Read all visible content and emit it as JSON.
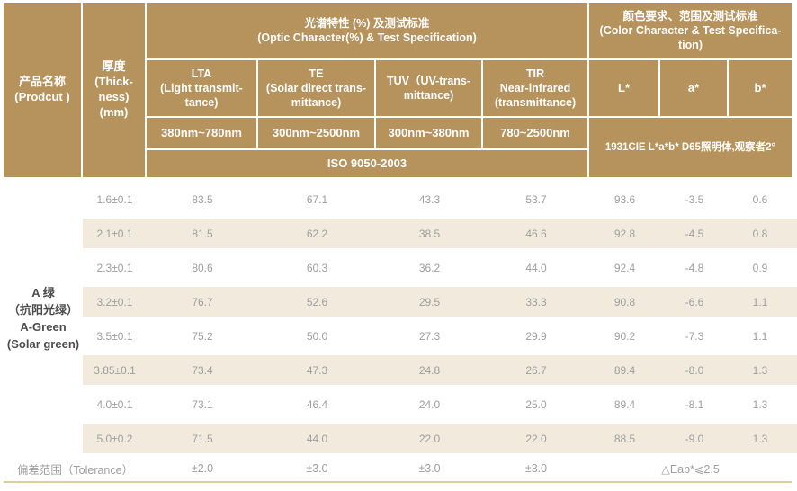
{
  "theme": {
    "header_bg": "#b6925c",
    "header_text": "#ffffff",
    "stripe_bg": "#f2ebdd",
    "value_text": "#9e9e9e",
    "product_text": "#4d4d4d",
    "bottom_line": "#ddcfa2"
  },
  "header": {
    "product_label": "产品名称\n(Prodcut )",
    "thickness_label": "厚度\n(Thick-\nness)\n(mm)",
    "optic_section_title": "光谱特性 (%) 及测试标准\n(Optic Character(%) & Test Specification)",
    "color_section_title": "颜色要求、范围及测试标准\n(Color Character & Test Specifica-\ntion)",
    "lta_label": "LTA\n(Light transmit-\ntance)",
    "te_label": "TE\n(Solar direct trans-\nmittance)",
    "tuv_label": "TUV（UV-trans-\nmittance)",
    "tir_label": "TIR\nNear-infrared\n(transmittance)",
    "lta_range": "380nm~780nm",
    "te_range": "300nm~2500nm",
    "tuv_range": "300nm~380nm",
    "tir_range": "780~2500nm",
    "optic_standard": "ISO 9050-2003",
    "l_label": "L*",
    "a_label": "a*",
    "b_label": "b*",
    "color_standard": "1931CIE L*a*b*  D65照明体,观察者2°"
  },
  "product": {
    "name": "A 绿\n（抗阳光绿）\nA-Green\n(Solar green)"
  },
  "rows": [
    {
      "thickness": "1.6±0.1",
      "lta": "83.5",
      "te": "67.1",
      "tuv": "43.3",
      "tir": "53.7",
      "l": "93.6",
      "a": "-3.5",
      "b": "0.6"
    },
    {
      "thickness": "2.1±0.1",
      "lta": "81.5",
      "te": "62.2",
      "tuv": "38.5",
      "tir": "46.6",
      "l": "92.8",
      "a": "-4.5",
      "b": "0.8"
    },
    {
      "thickness": "2.3±0.1",
      "lta": "80.6",
      "te": "60.3",
      "tuv": "36.2",
      "tir": "44.0",
      "l": "92.4",
      "a": "-4.8",
      "b": "0.9"
    },
    {
      "thickness": "3.2±0.1",
      "lta": "76.7",
      "te": "52.6",
      "tuv": "29.5",
      "tir": "33.3",
      "l": "90.8",
      "a": "-6.6",
      "b": "1.1"
    },
    {
      "thickness": "3.5±0.1",
      "lta": "75.2",
      "te": "50.0",
      "tuv": "27.3",
      "tir": "29.9",
      "l": "90.2",
      "a": "-7.3",
      "b": "1.1"
    },
    {
      "thickness": "3.85±0.1",
      "lta": "73.4",
      "te": "47.3",
      "tuv": "24.8",
      "tir": "26.7",
      "l": "89.4",
      "a": "-8.0",
      "b": "1.3"
    },
    {
      "thickness": "4.0±0.1",
      "lta": "73.1",
      "te": "46.4",
      "tuv": "24.0",
      "tir": "25.0",
      "l": "89.4",
      "a": "-8.1",
      "b": "1.3"
    },
    {
      "thickness": "5.0±0.2",
      "lta": "71.5",
      "te": "44.0",
      "tuv": "22.0",
      "tir": "22.0",
      "l": "88.5",
      "a": "-9.0",
      "b": "1.3"
    }
  ],
  "tolerance": {
    "label": "偏差范围（Tolerance）",
    "lta": "±2.0",
    "te": "±3.0",
    "tuv": "±3.0",
    "tir": "±3.0",
    "color": "△Eab*⩽2.5"
  }
}
